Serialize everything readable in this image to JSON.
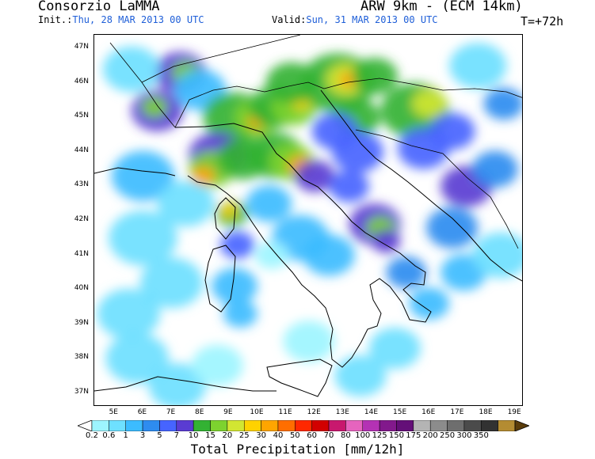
{
  "header": {
    "org": "Consorzio LaMMA",
    "model": "ARW 9km - (ECM 14km)",
    "init_label": "Init.:",
    "init_value": "Thu, 28 MAR 2013  00 UTC",
    "valid_label": "Valid:",
    "valid_value": "Sun, 31 MAR 2013  00 UTC",
    "lead_time": "T=+72h"
  },
  "map": {
    "lat_labels": [
      "47N",
      "46N",
      "45N",
      "44N",
      "43N",
      "42N",
      "41N",
      "40N",
      "39N",
      "38N",
      "37N"
    ],
    "lon_labels": [
      "5E",
      "6E",
      "7E",
      "8E",
      "9E",
      "10E",
      "11E",
      "12E",
      "13E",
      "14E",
      "15E",
      "16E",
      "17E",
      "18E",
      "19E"
    ],
    "lat_range": [
      36.6,
      47.4
    ],
    "lon_range": [
      4.3,
      19.3
    ],
    "land_color": "#000000",
    "cells": [
      {
        "lon": 6.5,
        "lat": 45.2,
        "r": 0.9,
        "lvl": 6
      },
      {
        "lon": 6.4,
        "lat": 45.3,
        "r": 0.45,
        "lvl": 8
      },
      {
        "lon": 7.3,
        "lat": 46.3,
        "r": 0.9,
        "lvl": 6
      },
      {
        "lon": 7.5,
        "lat": 46.3,
        "r": 0.5,
        "lvl": 8
      },
      {
        "lon": 8.0,
        "lat": 45.8,
        "r": 0.9,
        "lvl": 3
      },
      {
        "lon": 9.2,
        "lat": 45.0,
        "r": 1.1,
        "lvl": 7
      },
      {
        "lon": 10.0,
        "lat": 45.0,
        "r": 0.8,
        "lvl": 8
      },
      {
        "lon": 10.0,
        "lat": 44.9,
        "r": 0.35,
        "lvl": 11
      },
      {
        "lon": 10.6,
        "lat": 45.3,
        "r": 0.9,
        "lvl": 7
      },
      {
        "lon": 11.3,
        "lat": 45.3,
        "r": 0.8,
        "lvl": 8
      },
      {
        "lon": 11.5,
        "lat": 45.5,
        "r": 0.4,
        "lvl": 10
      },
      {
        "lon": 11.2,
        "lat": 46.0,
        "r": 0.9,
        "lvl": 7
      },
      {
        "lon": 12.8,
        "lat": 46.0,
        "r": 1.3,
        "lvl": 7
      },
      {
        "lon": 13.1,
        "lat": 46.1,
        "r": 0.7,
        "lvl": 9
      },
      {
        "lon": 13.2,
        "lat": 46.1,
        "r": 0.35,
        "lvl": 11
      },
      {
        "lon": 14.1,
        "lat": 46.2,
        "r": 0.8,
        "lvl": 7
      },
      {
        "lon": 15.5,
        "lat": 45.2,
        "r": 1.2,
        "lvl": 7
      },
      {
        "lon": 16.0,
        "lat": 45.4,
        "r": 0.6,
        "lvl": 9
      },
      {
        "lon": 13.5,
        "lat": 45.0,
        "r": 0.8,
        "lvl": 7
      },
      {
        "lon": 8.6,
        "lat": 43.9,
        "r": 1.0,
        "lvl": 6
      },
      {
        "lon": 8.4,
        "lat": 43.5,
        "r": 0.8,
        "lvl": 8
      },
      {
        "lon": 8.1,
        "lat": 43.3,
        "r": 0.4,
        "lvl": 11
      },
      {
        "lon": 9.5,
        "lat": 43.8,
        "r": 0.9,
        "lvl": 7
      },
      {
        "lon": 10.6,
        "lat": 43.9,
        "r": 1.0,
        "lvl": 7
      },
      {
        "lon": 11.2,
        "lat": 43.7,
        "r": 0.8,
        "lvl": 8
      },
      {
        "lon": 11.5,
        "lat": 43.6,
        "r": 0.45,
        "lvl": 11
      },
      {
        "lon": 12.0,
        "lat": 43.3,
        "r": 0.7,
        "lvl": 6
      },
      {
        "lon": 13.2,
        "lat": 43.0,
        "r": 0.7,
        "lvl": 5
      },
      {
        "lon": 9.1,
        "lat": 42.2,
        "r": 0.55,
        "lvl": 7
      },
      {
        "lon": 9.0,
        "lat": 42.3,
        "r": 0.3,
        "lvl": 10
      },
      {
        "lon": 9.3,
        "lat": 41.3,
        "r": 0.6,
        "lvl": 5
      },
      {
        "lon": 14.1,
        "lat": 41.9,
        "r": 0.9,
        "lvl": 6
      },
      {
        "lon": 14.3,
        "lat": 41.8,
        "r": 0.5,
        "lvl": 8
      },
      {
        "lon": 14.5,
        "lat": 41.4,
        "r": 0.5,
        "lvl": 6
      },
      {
        "lon": 15.2,
        "lat": 40.5,
        "r": 0.7,
        "lvl": 4
      },
      {
        "lon": 17.3,
        "lat": 43.0,
        "r": 0.9,
        "lvl": 6
      },
      {
        "lon": 18.3,
        "lat": 43.5,
        "r": 0.8,
        "lvl": 4
      },
      {
        "lon": 15.8,
        "lat": 44.1,
        "r": 0.9,
        "lvl": 5
      },
      {
        "lon": 16.8,
        "lat": 44.6,
        "r": 0.8,
        "lvl": 5
      },
      {
        "lon": 18.6,
        "lat": 45.4,
        "r": 0.7,
        "lvl": 4
      },
      {
        "lon": 12.7,
        "lat": 44.6,
        "r": 0.8,
        "lvl": 5
      },
      {
        "lon": 13.5,
        "lat": 44.0,
        "r": 0.9,
        "lvl": 5
      },
      {
        "lon": 16.8,
        "lat": 41.8,
        "r": 0.9,
        "lvl": 4
      },
      {
        "lon": 17.2,
        "lat": 40.5,
        "r": 0.8,
        "lvl": 3
      },
      {
        "lon": 16.0,
        "lat": 39.6,
        "r": 0.7,
        "lvl": 3
      },
      {
        "lon": 9.2,
        "lat": 40.1,
        "r": 0.8,
        "lvl": 3
      },
      {
        "lon": 9.4,
        "lat": 39.3,
        "r": 0.6,
        "lvl": 3
      },
      {
        "lon": 10.4,
        "lat": 42.5,
        "r": 0.8,
        "lvl": 3
      },
      {
        "lon": 11.5,
        "lat": 41.5,
        "r": 1.0,
        "lvl": 3
      },
      {
        "lon": 12.5,
        "lat": 41.0,
        "r": 0.9,
        "lvl": 3
      },
      {
        "lon": 6.0,
        "lat": 43.3,
        "r": 1.1,
        "lvl": 3
      },
      {
        "lon": 7.5,
        "lat": 42.5,
        "r": 1.0,
        "lvl": 2
      },
      {
        "lon": 6.0,
        "lat": 41.5,
        "r": 1.2,
        "lvl": 2
      },
      {
        "lon": 7.0,
        "lat": 40.2,
        "r": 1.1,
        "lvl": 2
      },
      {
        "lon": 5.5,
        "lat": 39.3,
        "r": 1.1,
        "lvl": 2
      },
      {
        "lon": 5.8,
        "lat": 38.0,
        "r": 1.1,
        "lvl": 2
      },
      {
        "lon": 7.2,
        "lat": 37.2,
        "r": 1.0,
        "lvl": 2
      },
      {
        "lon": 8.6,
        "lat": 37.8,
        "r": 0.9,
        "lvl": 1
      },
      {
        "lon": 13.6,
        "lat": 37.5,
        "r": 0.9,
        "lvl": 2
      },
      {
        "lon": 14.8,
        "lat": 38.3,
        "r": 0.9,
        "lvl": 2
      },
      {
        "lon": 11.8,
        "lat": 38.5,
        "r": 0.9,
        "lvl": 1
      },
      {
        "lon": 18.5,
        "lat": 41.0,
        "r": 1.0,
        "lvl": 2
      },
      {
        "lon": 17.7,
        "lat": 46.5,
        "r": 1.0,
        "lvl": 2
      },
      {
        "lon": 5.6,
        "lat": 46.4,
        "r": 1.0,
        "lvl": 2
      },
      {
        "lon": 10.5,
        "lat": 41.0,
        "r": 0.6,
        "lvl": 1
      }
    ]
  },
  "colorbar": {
    "colors": [
      "#ffffff",
      "#9df5ff",
      "#6ee0ff",
      "#3cbcff",
      "#2e8cf0",
      "#4664ff",
      "#5a3cd2",
      "#33b233",
      "#7dd22f",
      "#d2e632",
      "#ffd200",
      "#ffa500",
      "#ff6e00",
      "#ff2800",
      "#d20000",
      "#c8186e",
      "#e664be",
      "#b432b4",
      "#82198c",
      "#640f78",
      "#b4b4b4",
      "#8c8c8c",
      "#6e6e6e",
      "#4b4b4b",
      "#323232",
      "#b48c32",
      "#966e1e",
      "#7d5014",
      "#5a3c0a"
    ],
    "labels": [
      "0.2",
      "0.6",
      "1",
      "3",
      "5",
      "7",
      "10",
      "15",
      "20",
      "25",
      "30",
      "40",
      "50",
      "60",
      "70",
      "80",
      "100",
      "125",
      "150",
      "175",
      "200",
      "250",
      "300",
      "350"
    ],
    "title": "Total Precipitation [mm/12h]"
  }
}
